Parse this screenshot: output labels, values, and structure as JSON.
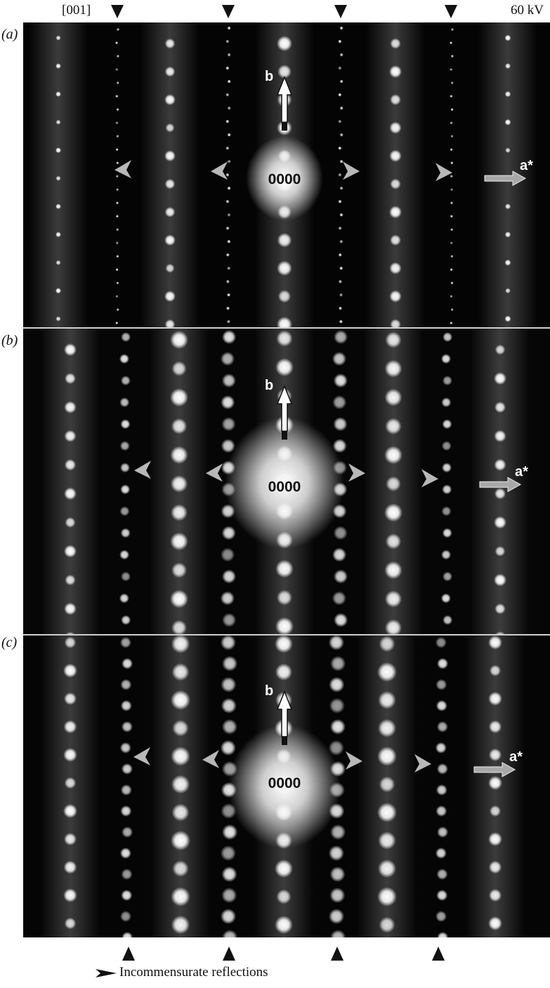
{
  "header": {
    "zone_axis": "[001]",
    "voltage": "60 kV"
  },
  "panels": [
    {
      "label": "(a)",
      "origin_label": "0000",
      "vector_b": "b",
      "vector_a": "a*"
    },
    {
      "label": "(b)",
      "origin_label": "0000",
      "vector_b": "b",
      "vector_a": "a*"
    },
    {
      "label": "(c)",
      "origin_label": "0000",
      "vector_b": "b",
      "vector_a": "a*"
    }
  ],
  "legend": {
    "text": "Incommensurate reflections"
  },
  "colors": {
    "background": "#000000",
    "spot": "#ffffff",
    "frame": "#ffffff"
  }
}
